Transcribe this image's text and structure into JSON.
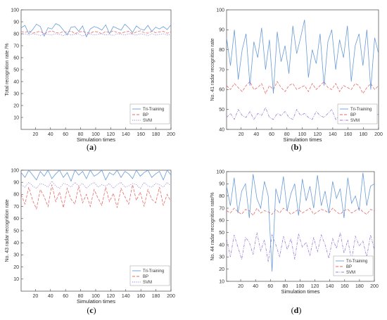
{
  "chart_data": [
    {
      "type": "line",
      "panel_label": "a",
      "title": "",
      "xlabel": "Simulation times",
      "ylabel": "Total recognition rate /%",
      "xlim": [
        1,
        200
      ],
      "ylim": [
        0,
        100
      ],
      "xticks": [
        20,
        40,
        60,
        80,
        100,
        120,
        140,
        160,
        180,
        200
      ],
      "yticks": [
        10,
        20,
        30,
        40,
        50,
        60,
        70,
        80,
        90,
        100
      ],
      "grid": false,
      "legend_position": "bottom-right",
      "series": [
        {
          "name": "Tri-Training",
          "color": "#6a9bd8",
          "dash": "solid",
          "values": [
            85.0,
            87.0,
            80.0,
            83.5,
            88.0,
            86.0,
            78.0,
            85.0,
            84.0,
            88.5,
            87.0,
            83.0,
            79.0,
            85.5,
            86.0,
            82.0,
            86.5,
            77.5,
            84.0,
            86.0,
            85.0,
            83.0,
            87.5,
            80.0,
            86.0,
            84.5,
            83.0,
            88.0,
            85.0,
            81.0,
            86.5,
            84.0,
            83.0,
            87.0,
            82.0,
            85.5,
            84.0,
            86.0,
            83.5,
            87.5
          ]
        },
        {
          "name": "BP",
          "color": "#e86a6a",
          "dash": "dashed",
          "values": [
            82.0,
            81.0,
            82.5,
            80.5,
            81.5,
            82.0,
            80.0,
            81.5,
            82.5,
            81.0,
            80.5,
            82.0,
            81.0,
            82.5,
            80.0,
            81.5,
            82.0,
            81.0,
            80.5,
            82.0,
            81.5,
            80.0,
            82.0,
            81.0,
            82.5,
            81.0,
            80.5,
            81.5,
            82.0,
            80.0,
            81.5,
            82.5,
            81.0,
            80.5,
            82.0,
            81.0,
            81.5,
            82.0,
            80.5,
            81.5
          ]
        },
        {
          "name": "SVM",
          "color": "#9b7fd6",
          "dash": "dotted",
          "values": [
            79.5,
            80.0,
            79.0,
            80.0,
            79.5,
            78.5,
            80.0,
            79.5,
            79.0,
            80.0,
            79.5,
            78.5,
            80.0,
            79.0,
            79.5,
            80.0,
            78.0,
            79.5,
            80.0,
            79.0,
            79.5,
            80.0,
            79.0,
            79.5,
            78.5,
            80.0,
            79.5,
            79.0,
            80.0,
            79.5,
            79.0,
            80.0,
            79.5,
            78.5,
            80.0,
            79.0,
            79.5,
            80.0,
            79.0,
            79.5
          ]
        }
      ]
    },
    {
      "type": "line",
      "panel_label": "b",
      "title": "",
      "xlabel": "Simulation times",
      "ylabel": "No. 41 radar recognition rate",
      "xlim": [
        1,
        200
      ],
      "ylim": [
        40,
        100
      ],
      "xticks": [
        20,
        40,
        60,
        80,
        100,
        120,
        140,
        160,
        180,
        200
      ],
      "yticks": [
        40,
        50,
        60,
        70,
        80,
        90,
        100
      ],
      "grid": false,
      "legend_position": "right",
      "series": [
        {
          "name": "Tri-Training",
          "color": "#6a9bd8",
          "dash": "solid",
          "values": [
            86,
            72,
            90,
            65,
            80,
            88,
            62,
            84,
            76,
            91,
            70,
            85,
            58,
            89,
            74,
            82,
            68,
            92,
            78,
            86,
            95,
            66,
            80,
            73,
            88,
            62,
            84,
            90,
            70,
            85,
            76,
            92,
            64,
            82,
            88,
            72,
            90,
            60,
            86,
            78
          ]
        },
        {
          "name": "BP",
          "color": "#e86a6a",
          "dash": "dashed",
          "values": [
            62,
            60,
            63,
            61,
            59,
            62,
            64,
            60,
            61,
            63,
            58,
            62,
            60,
            64,
            61,
            59,
            62,
            63,
            60,
            61,
            62,
            59,
            63,
            60,
            62,
            64,
            61,
            60,
            63,
            59,
            62,
            61,
            60,
            63,
            62,
            58,
            61,
            63,
            60,
            62
          ]
        },
        {
          "name": "SVM",
          "color": "#9b7fd6",
          "dash": "dashdot",
          "values": [
            46,
            48,
            45,
            50,
            47,
            46,
            49,
            45,
            48,
            47,
            51,
            46,
            45,
            48,
            47,
            49,
            46,
            45,
            50,
            47,
            48,
            46,
            45,
            49,
            47,
            46,
            48,
            50,
            45,
            47,
            46,
            49,
            48,
            45,
            47,
            46,
            50,
            47,
            45,
            48
          ]
        }
      ]
    },
    {
      "type": "line",
      "panel_label": "c",
      "title": "",
      "xlabel": "Simulation times",
      "ylabel": "No. 43 radar recognition rate",
      "xlim": [
        1,
        200
      ],
      "ylim": [
        0,
        100
      ],
      "xticks": [
        20,
        40,
        60,
        80,
        100,
        120,
        140,
        160,
        180,
        200
      ],
      "yticks": [
        10,
        20,
        30,
        40,
        50,
        60,
        70,
        80,
        90,
        100
      ],
      "grid": false,
      "legend_position": "bottom-right",
      "series": [
        {
          "name": "Tri-Training",
          "color": "#6a9bd8",
          "dash": "solid",
          "values": [
            98,
            94,
            100,
            96,
            92,
            99,
            95,
            100,
            93,
            97,
            100,
            94,
            98,
            91,
            100,
            96,
            99,
            93,
            100,
            95,
            97,
            100,
            92,
            98,
            96,
            100,
            94,
            99,
            97,
            93,
            100,
            95,
            98,
            100,
            94,
            97,
            99,
            92,
            100,
            96
          ]
        },
        {
          "name": "BP",
          "color": "#e86a6a",
          "dash": "dashed",
          "values": [
            80,
            72,
            86,
            75,
            68,
            84,
            78,
            70,
            88,
            74,
            82,
            69,
            85,
            76,
            72,
            87,
            73,
            80,
            70,
            84,
            77,
            71,
            86,
            74,
            81,
            69,
            85,
            78,
            72,
            88,
            75,
            82,
            70,
            84,
            76,
            73,
            86,
            71,
            80,
            74
          ]
        },
        {
          "name": "SVM",
          "color": "#9b7fd6",
          "dash": "dotted",
          "values": [
            88,
            86,
            90,
            87,
            85,
            89,
            88,
            86,
            91,
            87,
            85,
            89,
            88,
            86,
            90,
            87,
            89,
            85,
            88,
            90,
            86,
            88,
            87,
            89,
            85,
            88,
            90,
            86,
            87,
            89,
            88,
            85,
            90,
            87,
            86,
            89,
            88,
            86,
            90,
            87
          ]
        }
      ]
    },
    {
      "type": "line",
      "panel_label": "d",
      "title": "",
      "xlabel": "Simulation times",
      "ylabel": "No. 44 radar recognition rate/%",
      "xlim": [
        1,
        200
      ],
      "ylim": [
        10,
        100
      ],
      "xticks": [
        20,
        40,
        60,
        80,
        100,
        120,
        140,
        160,
        180,
        200
      ],
      "yticks": [
        10,
        20,
        30,
        40,
        50,
        60,
        70,
        80,
        90,
        100
      ],
      "grid": false,
      "legend_position": "bottom-right",
      "series": [
        {
          "name": "Tri-Training",
          "color": "#6a9bd8",
          "dash": "solid",
          "values": [
            88,
            72,
            95,
            66,
            84,
            90,
            62,
            98,
            78,
            70,
            92,
            80,
            18,
            86,
            74,
            96,
            68,
            82,
            90,
            64,
            94,
            76,
            88,
            70,
            97,
            72,
            84,
            66,
            92,
            78,
            86,
            62,
            95,
            74,
            80,
            68,
            99,
            72,
            88,
            90
          ]
        },
        {
          "name": "BP",
          "color": "#e86a6a",
          "dash": "dashed",
          "values": [
            68,
            66,
            70,
            67,
            65,
            69,
            68,
            64,
            70,
            66,
            68,
            67,
            65,
            69,
            66,
            70,
            68,
            65,
            67,
            69,
            66,
            68,
            70,
            65,
            67,
            69,
            68,
            66,
            70,
            67,
            65,
            68,
            69,
            66,
            68,
            70,
            67,
            65,
            69,
            68
          ]
        },
        {
          "name": "SVM",
          "color": "#9b7fd6",
          "dash": "dashdot",
          "values": [
            45,
            30,
            48,
            38,
            28,
            46,
            42,
            32,
            50,
            35,
            44,
            26,
            48,
            40,
            30,
            47,
            36,
            45,
            28,
            49,
            38,
            42,
            31,
            46,
            34,
            48,
            40,
            29,
            45,
            37,
            50,
            33,
            44,
            27,
            47,
            39,
            43,
            30,
            48,
            36
          ]
        }
      ]
    }
  ]
}
